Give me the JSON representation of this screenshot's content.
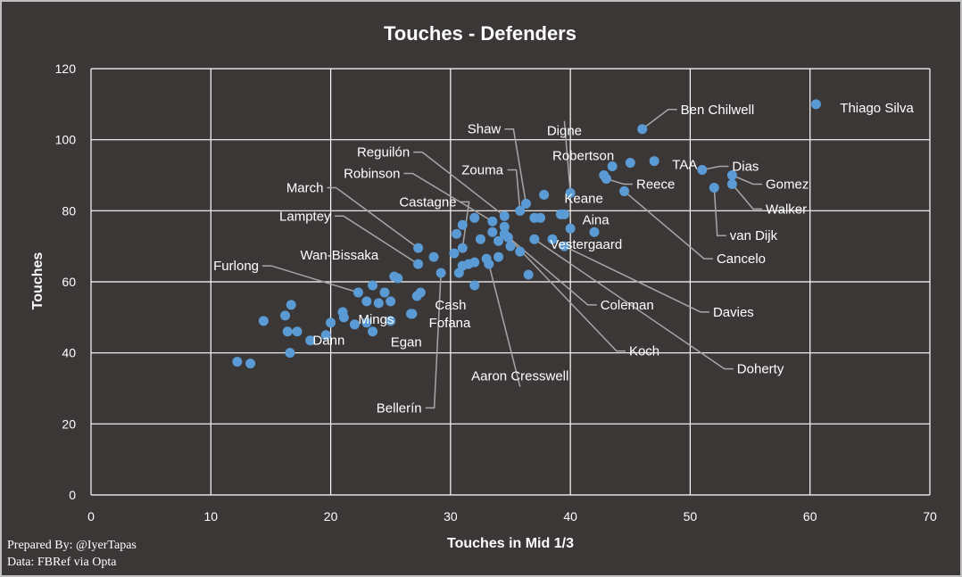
{
  "chart_data": {
    "type": "scatter",
    "title": "Touches - Defenders",
    "xlabel": "Touches in Mid 1/3",
    "ylabel": "Touches",
    "xlim": [
      0,
      70
    ],
    "ylim": [
      0,
      120
    ],
    "xticks": [
      0,
      10,
      20,
      30,
      40,
      50,
      60,
      70
    ],
    "yticks": [
      0,
      20,
      40,
      60,
      80,
      100,
      120
    ],
    "grid": true,
    "background_color": "#3b3736",
    "point_color": "#5b9bd5",
    "points": [
      {
        "x": 60.5,
        "y": 110,
        "label": "Thiago Silva"
      },
      {
        "x": 46,
        "y": 103,
        "label": "Ben Chilwell"
      },
      {
        "x": 47,
        "y": 94,
        "label": "TAA"
      },
      {
        "x": 51,
        "y": 91.5,
        "label": "Dias"
      },
      {
        "x": 53.5,
        "y": 90,
        "label": "Gomez"
      },
      {
        "x": 53.5,
        "y": 87.5,
        "label": "Walker"
      },
      {
        "x": 52,
        "y": 86.5,
        "label": "van Dijk"
      },
      {
        "x": 44.5,
        "y": 85.5,
        "label": "Cancelo"
      },
      {
        "x": 43,
        "y": 89,
        "label": "Reece"
      },
      {
        "x": 40,
        "y": 85,
        "label": "Digne"
      },
      {
        "x": 37.8,
        "y": 84.5,
        "label": "Keane"
      },
      {
        "x": 36.3,
        "y": 82,
        "label": "Shaw"
      },
      {
        "x": 39.5,
        "y": 79,
        "label": "Aina"
      },
      {
        "x": 35.8,
        "y": 80,
        "label": "Zouma"
      },
      {
        "x": 34.5,
        "y": 78.5,
        "label": "Reguilón"
      },
      {
        "x": 33.5,
        "y": 77,
        "label": "Robinson"
      },
      {
        "x": 42,
        "y": 74,
        "label": "Vestergaard"
      },
      {
        "x": 31,
        "y": 69.5,
        "label": "Castagne"
      },
      {
        "x": 27.3,
        "y": 69.5,
        "label": "March"
      },
      {
        "x": 27.3,
        "y": 65,
        "label": "Lamptey"
      },
      {
        "x": 28.6,
        "y": 67,
        "label": "Wan-Bissaka"
      },
      {
        "x": 22.3,
        "y": 57,
        "label": "Furlong"
      },
      {
        "x": 27.5,
        "y": 57,
        "label": "Cash"
      },
      {
        "x": 26.8,
        "y": 51,
        "label": "Fofana"
      },
      {
        "x": 24,
        "y": 54,
        "label": "Mings"
      },
      {
        "x": 20,
        "y": 48.5,
        "label": "Dann"
      },
      {
        "x": 23.5,
        "y": 46,
        "label": "Egan"
      },
      {
        "x": 29.2,
        "y": 62.5,
        "label": "Bellerín"
      },
      {
        "x": 33.2,
        "y": 65,
        "label": "Aaron Cresswell"
      },
      {
        "x": 34.5,
        "y": 73.5,
        "label": "Coleman"
      },
      {
        "x": 34.8,
        "y": 72.5,
        "label": "Koch"
      },
      {
        "x": 37,
        "y": 72,
        "label": "Doherty"
      },
      {
        "x": 39.5,
        "y": 70,
        "label": "Davies"
      },
      {
        "x": 45,
        "y": 93.5
      },
      {
        "x": 43.5,
        "y": 92.5
      },
      {
        "x": 42.8,
        "y": 90
      },
      {
        "x": 40,
        "y": 75
      },
      {
        "x": 39.2,
        "y": 79
      },
      {
        "x": 37,
        "y": 78
      },
      {
        "x": 37.5,
        "y": 78
      },
      {
        "x": 34.5,
        "y": 75.5
      },
      {
        "x": 33.5,
        "y": 74
      },
      {
        "x": 34,
        "y": 71.5
      },
      {
        "x": 35,
        "y": 70
      },
      {
        "x": 35.8,
        "y": 68.5
      },
      {
        "x": 34,
        "y": 67
      },
      {
        "x": 33,
        "y": 66.5
      },
      {
        "x": 32.5,
        "y": 72
      },
      {
        "x": 32,
        "y": 78
      },
      {
        "x": 31,
        "y": 76
      },
      {
        "x": 30.5,
        "y": 73.5
      },
      {
        "x": 30.3,
        "y": 68
      },
      {
        "x": 30.7,
        "y": 62.5
      },
      {
        "x": 31,
        "y": 64.5
      },
      {
        "x": 31.5,
        "y": 65
      },
      {
        "x": 32,
        "y": 65.5
      },
      {
        "x": 32,
        "y": 59
      },
      {
        "x": 36.5,
        "y": 62
      },
      {
        "x": 38.5,
        "y": 72
      },
      {
        "x": 25.3,
        "y": 61.5
      },
      {
        "x": 25.6,
        "y": 61
      },
      {
        "x": 23.5,
        "y": 59
      },
      {
        "x": 24.5,
        "y": 57
      },
      {
        "x": 23,
        "y": 54.5
      },
      {
        "x": 25,
        "y": 54.5
      },
      {
        "x": 27.2,
        "y": 56
      },
      {
        "x": 26.7,
        "y": 51
      },
      {
        "x": 25,
        "y": 49
      },
      {
        "x": 23,
        "y": 48.5
      },
      {
        "x": 21,
        "y": 51.5
      },
      {
        "x": 21.1,
        "y": 50
      },
      {
        "x": 22,
        "y": 48
      },
      {
        "x": 19.6,
        "y": 45
      },
      {
        "x": 18.3,
        "y": 43.5
      },
      {
        "x": 17.2,
        "y": 46
      },
      {
        "x": 16.4,
        "y": 46
      },
      {
        "x": 16.2,
        "y": 50.5
      },
      {
        "x": 16.7,
        "y": 53.5
      },
      {
        "x": 14.4,
        "y": 49
      },
      {
        "x": 16.6,
        "y": 40
      },
      {
        "x": 12.2,
        "y": 37.5
      },
      {
        "x": 13.3,
        "y": 37
      }
    ],
    "annotations": [
      {
        "label": "Thiago Silva",
        "tx": 62.5,
        "ty": 109,
        "anchor": "start",
        "leader": false
      },
      {
        "label": "Ben Chilwell",
        "tx": 49.2,
        "ty": 108.5,
        "anchor": "start",
        "leader": true
      },
      {
        "label": "TAA",
        "tx": 48.5,
        "ty": 93,
        "anchor": "start",
        "leader": false
      },
      {
        "label": "Dias",
        "tx": 53.5,
        "ty": 92.5,
        "anchor": "start",
        "leader": true
      },
      {
        "label": "Gomez",
        "tx": 56.3,
        "ty": 87.5,
        "anchor": "start",
        "leader": true
      },
      {
        "label": "Walker",
        "tx": 56.3,
        "ty": 80.5,
        "anchor": "start",
        "leader": true
      },
      {
        "label": "van Dijk",
        "tx": 53.3,
        "ty": 73,
        "anchor": "start",
        "leader": true
      },
      {
        "label": "Cancelo",
        "tx": 52.2,
        "ty": 66.5,
        "anchor": "start",
        "leader": true
      },
      {
        "label": "Reece",
        "tx": 45.5,
        "ty": 87.5,
        "anchor": "start",
        "leader": true
      },
      {
        "label": "Robertson",
        "tx": 38.5,
        "ty": 95.5,
        "anchor": "start",
        "leader": false
      },
      {
        "label": "Digne",
        "tx": 39.5,
        "ty": 102.5,
        "anchor": "middle",
        "leader": true
      },
      {
        "label": "Keane",
        "tx": 39.5,
        "ty": 83.5,
        "anchor": "start",
        "leader": false
      },
      {
        "label": "Shaw",
        "tx": 34.2,
        "ty": 103,
        "anchor": "end",
        "leader": true
      },
      {
        "label": "Aina",
        "tx": 41.0,
        "ty": 77.5,
        "anchor": "start",
        "leader": false
      },
      {
        "label": "Zouma",
        "tx": 34.4,
        "ty": 91.5,
        "anchor": "end",
        "leader": true
      },
      {
        "label": "Reguilón",
        "tx": 26.6,
        "ty": 96.5,
        "anchor": "end",
        "leader": true
      },
      {
        "label": "Robinson",
        "tx": 25.8,
        "ty": 90.5,
        "anchor": "end",
        "leader": true
      },
      {
        "label": "Vestergaard",
        "tx": 38.3,
        "ty": 70.5,
        "anchor": "start",
        "leader": false
      },
      {
        "label": "Castagne",
        "tx": 30.5,
        "ty": 82.5,
        "anchor": "end",
        "leader": true
      },
      {
        "label": "March",
        "tx": 19.4,
        "ty": 86.5,
        "anchor": "end",
        "leader": true
      },
      {
        "label": "Lamptey",
        "tx": 20.0,
        "ty": 78.5,
        "anchor": "end",
        "leader": true
      },
      {
        "label": "Wan-Bissaka",
        "tx": 24.0,
        "ty": 67.5,
        "anchor": "end",
        "leader": false
      },
      {
        "label": "Furlong",
        "tx": 14.0,
        "ty": 64.5,
        "anchor": "end",
        "leader": true
      },
      {
        "label": "Cash",
        "tx": 28.7,
        "ty": 53.5,
        "anchor": "start",
        "leader": false
      },
      {
        "label": "Fofana",
        "tx": 28.2,
        "ty": 48.5,
        "anchor": "start",
        "leader": false
      },
      {
        "label": "Mings",
        "tx": 22.3,
        "ty": 49.5,
        "anchor": "start",
        "leader": false
      },
      {
        "label": "Dann",
        "tx": 18.5,
        "ty": 43.5,
        "anchor": "start",
        "leader": false
      },
      {
        "label": "Egan",
        "tx": 25.0,
        "ty": 43,
        "anchor": "start",
        "leader": false
      },
      {
        "label": "Bellerín",
        "tx": 27.6,
        "ty": 24.5,
        "anchor": "end",
        "leader": true
      },
      {
        "label": "Aaron Cresswell",
        "tx": 35.8,
        "ty": 33.5,
        "anchor": "middle",
        "leader": true
      },
      {
        "label": "Coleman",
        "tx": 42.5,
        "ty": 53.5,
        "anchor": "start",
        "leader": true
      },
      {
        "label": "Koch",
        "tx": 44.9,
        "ty": 40.5,
        "anchor": "start",
        "leader": true
      },
      {
        "label": "Doherty",
        "tx": 53.9,
        "ty": 35.5,
        "anchor": "start",
        "leader": true
      },
      {
        "label": "Davies",
        "tx": 51.9,
        "ty": 51.5,
        "anchor": "start",
        "leader": true
      }
    ]
  },
  "credits": {
    "prepared_by": "Prepared By: @IyerTapas",
    "data_source": "Data: FBRef via Opta"
  }
}
